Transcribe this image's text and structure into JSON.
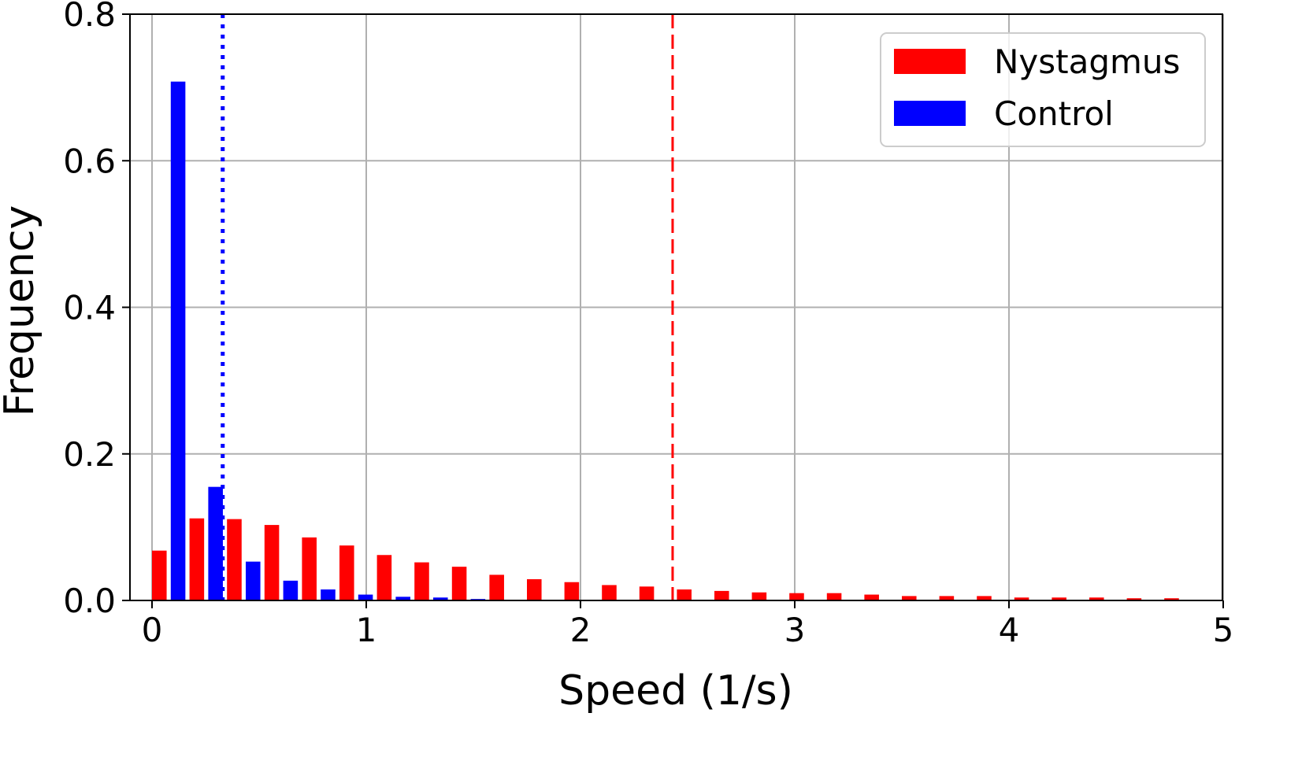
{
  "chart_data": {
    "type": "bar",
    "title": "",
    "xlabel": "Speed (1/s)",
    "ylabel": "Frequency",
    "xlim": [
      -0.1,
      5.0
    ],
    "ylim": [
      0.0,
      0.8
    ],
    "xticks": [
      0,
      1,
      2,
      3,
      4,
      5
    ],
    "xtick_labels": [
      "0",
      "1",
      "2",
      "3",
      "4",
      "5"
    ],
    "yticks": [
      0.0,
      0.2,
      0.4,
      0.6,
      0.8
    ],
    "ytick_labels": [
      "0.0",
      "0.2",
      "0.4",
      "0.6",
      "0.8"
    ],
    "grid": true,
    "legend_position": "top-right",
    "bin_width": 0.175,
    "bin_starts": [
      0.0,
      0.175,
      0.35,
      0.525,
      0.7,
      0.875,
      1.05,
      1.225,
      1.4,
      1.575,
      1.75,
      1.925,
      2.1,
      2.275,
      2.45,
      2.625,
      2.8,
      2.975,
      3.15,
      3.325,
      3.5,
      3.675,
      3.85,
      4.025,
      4.2,
      4.375,
      4.55,
      4.725
    ],
    "series": [
      {
        "name": "Nystagmus",
        "color": "#ff0000",
        "values": [
          0.068,
          0.112,
          0.111,
          0.103,
          0.086,
          0.075,
          0.062,
          0.052,
          0.046,
          0.035,
          0.029,
          0.025,
          0.021,
          0.019,
          0.015,
          0.013,
          0.011,
          0.01,
          0.01,
          0.008,
          0.006,
          0.006,
          0.006,
          0.004,
          0.004,
          0.004,
          0.003,
          0.003
        ]
      },
      {
        "name": "Control",
        "color": "#0000ff",
        "values": [
          0.708,
          0.155,
          0.053,
          0.027,
          0.015,
          0.008,
          0.005,
          0.004,
          0.002,
          0.001,
          0.001,
          0.001,
          0.001,
          0.001,
          0,
          0,
          0,
          0,
          0,
          0,
          0,
          0,
          0,
          0,
          0,
          0,
          0,
          0
        ]
      }
    ],
    "reference_lines": [
      {
        "x": 0.33,
        "color": "#0000ff",
        "style": "dotted"
      },
      {
        "x": 2.43,
        "color": "#ff0000",
        "style": "dashed"
      }
    ]
  }
}
